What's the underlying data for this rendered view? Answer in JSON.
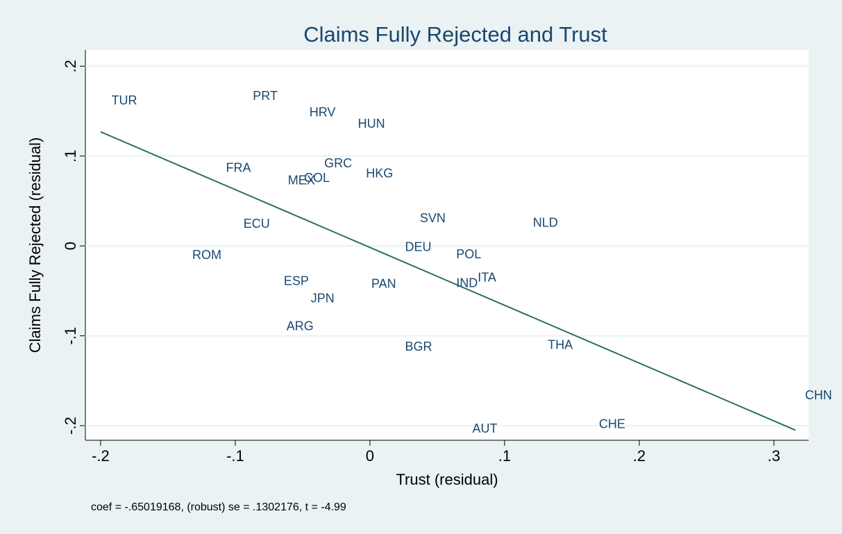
{
  "chart_data": {
    "type": "scatter",
    "title": "Claims Fully Rejected and Trust",
    "x_label": "Trust (residual)",
    "y_label": "Claims Fully Rejected (residual)",
    "note": "coef = -.65019168, (robust) se = .1302176, t = -4.99",
    "labels": [
      "TUR",
      "PRT",
      "HRV",
      "HUN",
      "FRA",
      "GRC",
      "HKG",
      "MEX",
      "COL",
      "ECU",
      "SVN",
      "NLD",
      "DEU",
      "ROM",
      "POL",
      "ITA",
      "IND",
      "ESP",
      "PAN",
      "JPN",
      "ARG",
      "BGR",
      "THA",
      "CHN",
      "AUT",
      "CHE"
    ],
    "x": [
      -0.194,
      -0.089,
      -0.047,
      -0.011,
      -0.109,
      -0.036,
      -0.005,
      -0.063,
      -0.051,
      -0.096,
      0.035,
      0.119,
      0.024,
      -0.134,
      0.062,
      0.078,
      0.062,
      -0.066,
      -0.001,
      -0.046,
      -0.064,
      0.024,
      0.13,
      0.321,
      0.074,
      0.168
    ],
    "values": [
      0.161,
      0.166,
      0.148,
      0.135,
      0.086,
      0.091,
      0.08,
      0.072,
      0.075,
      0.024,
      0.03,
      0.025,
      -0.002,
      -0.011,
      -0.01,
      -0.036,
      -0.042,
      -0.04,
      -0.043,
      -0.059,
      -0.09,
      -0.113,
      -0.111,
      -0.167,
      -0.204,
      -0.199
    ],
    "label_color": "#1a476f",
    "fit": {
      "x": [
        -0.2,
        0.316
      ],
      "values": [
        0.127,
        -0.205
      ],
      "color": "#2d6e62"
    },
    "xlim": [
      -0.2113,
      0.3258
    ],
    "ylim": [
      -0.2162,
      0.218
    ],
    "xticks": [
      {
        "value": -0.2,
        "label": "-.2"
      },
      {
        "value": -0.1,
        "label": "-.1"
      },
      0,
      {
        "value": 0.1,
        "label": ".1"
      },
      {
        "value": 0.2,
        "label": ".2"
      },
      {
        "value": 0.3,
        "label": ".3"
      }
    ],
    "yticks": [
      {
        "value": -0.2,
        "label": "-.2"
      },
      {
        "value": -0.1,
        "label": "-.1"
      },
      0,
      {
        "value": 0.1,
        "label": ".1"
      },
      {
        "value": 0.2,
        "label": ".2"
      }
    ],
    "grid": true
  }
}
